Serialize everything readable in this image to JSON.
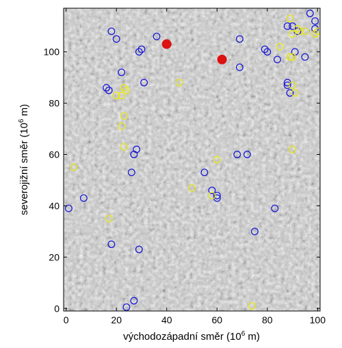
{
  "chart_data": {
    "type": "scatter",
    "xlabel": {
      "main": "východozápadní směr (10",
      "sup": "6",
      "tail": " m)"
    },
    "ylabel": {
      "main": "severojižní směr (10",
      "sup": "6",
      "tail": " m)"
    },
    "xlim": [
      -1,
      101
    ],
    "ylim": [
      -1,
      117
    ],
    "xticks": [
      0,
      20,
      40,
      60,
      80,
      100
    ],
    "yticks": [
      0,
      20,
      40,
      60,
      80,
      100
    ],
    "grid": false,
    "background": "grayscale noise map",
    "series": [
      {
        "marker": "open-circle",
        "color": "#1a1ad6",
        "points": [
          [
            18,
            108
          ],
          [
            20,
            105
          ],
          [
            36,
            106
          ],
          [
            29,
            100
          ],
          [
            30,
            101
          ],
          [
            22,
            92
          ],
          [
            31,
            88
          ],
          [
            16,
            86
          ],
          [
            17,
            85
          ],
          [
            28,
            62
          ],
          [
            27,
            60
          ],
          [
            26,
            53
          ],
          [
            18,
            25
          ],
          [
            29,
            23
          ],
          [
            27,
            3
          ],
          [
            24,
            0.5
          ],
          [
            1,
            39
          ],
          [
            7,
            43
          ],
          [
            55,
            53
          ],
          [
            58,
            46
          ],
          [
            60,
            44
          ],
          [
            60,
            43
          ],
          [
            68,
            60
          ],
          [
            72,
            60
          ],
          [
            75,
            30
          ],
          [
            83,
            39
          ],
          [
            69,
            105
          ],
          [
            79,
            101
          ],
          [
            80,
            100
          ],
          [
            69,
            94
          ],
          [
            84,
            97
          ],
          [
            88,
            88
          ],
          [
            88,
            87
          ],
          [
            89,
            84
          ],
          [
            90,
            110
          ],
          [
            91,
            100
          ],
          [
            92,
            108
          ],
          [
            95,
            98
          ],
          [
            97,
            115
          ],
          [
            99,
            112
          ],
          [
            99,
            109
          ],
          [
            88,
            110
          ]
        ]
      },
      {
        "marker": "open-circle",
        "color": "#e6e619",
        "points": [
          [
            89,
            113
          ],
          [
            92,
            109
          ],
          [
            93,
            108
          ],
          [
            95,
            108
          ],
          [
            90,
            107
          ],
          [
            100,
            108
          ],
          [
            99,
            107
          ],
          [
            85,
            102
          ],
          [
            89,
            98
          ],
          [
            90,
            98
          ],
          [
            90,
            87
          ],
          [
            91,
            84
          ],
          [
            45,
            88
          ],
          [
            22,
            83
          ],
          [
            20,
            83
          ],
          [
            23,
            86
          ],
          [
            24,
            85
          ],
          [
            23,
            75
          ],
          [
            22,
            71
          ],
          [
            23,
            63
          ],
          [
            3,
            55
          ],
          [
            60,
            58
          ],
          [
            50,
            47
          ],
          [
            58,
            44
          ],
          [
            17,
            35
          ],
          [
            90,
            62
          ],
          [
            74,
            1
          ]
        ]
      },
      {
        "marker": "filled-circle",
        "color": "#dd1111",
        "points": [
          [
            40,
            103
          ],
          [
            62,
            97
          ]
        ]
      }
    ]
  }
}
